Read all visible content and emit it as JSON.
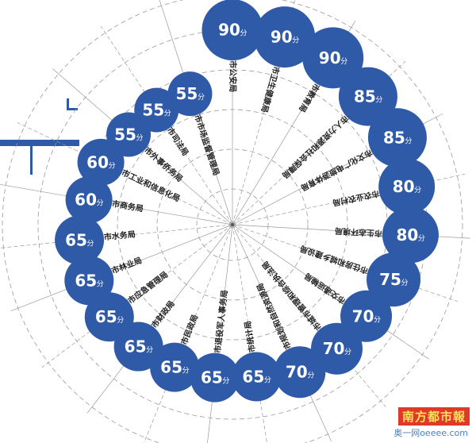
{
  "chart_data": {
    "type": "radial-bubble",
    "unit": "分",
    "series_color": "#2f5aa8",
    "grid": true,
    "categories": [
      "市公安局",
      "市卫生健康局",
      "市教育局",
      "市人力资源和社会保障局",
      "市文化广电旅游体育局",
      "市农业农村局",
      "市生态环境局",
      "市住房和城乡建设局",
      "市交通运输局",
      "市城市管理和综合执法局",
      "市规划和自然资源局",
      "市统计局",
      "市退役军人事务局",
      "市民政局",
      "市财政局",
      "市应急管理局",
      "市林业局",
      "市水务局",
      "市商务局",
      "市工业和信息化局",
      "市外事侨务局",
      "市司法局",
      "市市场监督管理局"
    ],
    "values": [
      90,
      90,
      90,
      85,
      85,
      80,
      80,
      75,
      70,
      70,
      70,
      65,
      65,
      65,
      65,
      65,
      65,
      65,
      60,
      60,
      55,
      55,
      55
    ]
  },
  "watermark": {
    "brand": "南方都市報",
    "site": "奥一网oeeee.com"
  }
}
